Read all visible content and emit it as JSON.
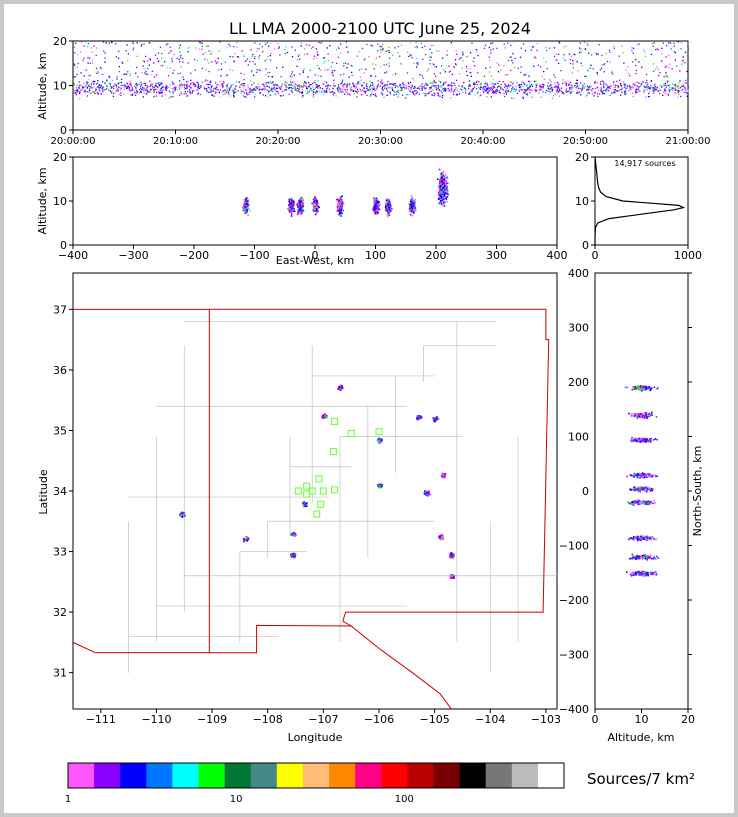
{
  "title": "LL LMA 2000-2100 UTC June 25, 2024",
  "colors": {
    "background": "#c8c8c8",
    "panel": "#ffffff",
    "state_border": "#cc0000",
    "county_border": "#c0c0c0",
    "histogram_line": "#000000",
    "network_station": "#66ff33"
  },
  "chart_data": [
    {
      "type": "scatter",
      "panel": "altitude-vs-time",
      "ylabel": "Altitude, km",
      "xlabel": "",
      "ylim": [
        0,
        20
      ],
      "yticks": [
        0,
        10,
        20
      ],
      "xlim_minutes": [
        0,
        60
      ],
      "xticks": [
        "20:00:00",
        "20:10:00",
        "20:20:00",
        "20:30:00",
        "20:40:00",
        "20:50:00",
        "21:00:00"
      ],
      "description_series": [
        {
          "name": "",
          "altitude_km_core": [
            7,
            12
          ],
          "altitude_km_sparse": [
            12,
            20
          ]
        }
      ]
    },
    {
      "type": "scatter",
      "panel": "altitude-vs-east-west",
      "xlabel": "East-West, km",
      "ylabel": "Altitude, km",
      "xlim": [
        -400,
        400
      ],
      "xticks": [
        -400,
        -300,
        -200,
        -100,
        0,
        100,
        200,
        300,
        400
      ],
      "ylim": [
        0,
        20
      ],
      "yticks": [
        0,
        10,
        20
      ],
      "clusters_x_km": [
        -115,
        -40,
        -25,
        0,
        40,
        100,
        120,
        160,
        210
      ]
    },
    {
      "type": "line",
      "panel": "altitude-histogram",
      "annotation": "14,917 sources",
      "xlim": [
        0,
        1000
      ],
      "xticks": [
        0,
        1000
      ],
      "ylim": [
        0,
        20
      ],
      "yticks": [
        0,
        10,
        20
      ],
      "altitude_km": [
        0,
        2,
        4,
        5,
        6,
        7,
        8,
        8.5,
        9,
        9.5,
        10,
        11,
        12,
        13,
        14,
        15,
        16,
        17,
        18,
        19,
        20
      ],
      "sources": [
        0,
        0,
        5,
        30,
        150,
        500,
        850,
        950,
        900,
        600,
        300,
        120,
        60,
        40,
        30,
        25,
        20,
        15,
        10,
        5,
        0
      ]
    },
    {
      "type": "scatter",
      "panel": "plan-view",
      "xlabel": "Longitude",
      "ylabel": "Latitude",
      "xlim": [
        -111.5,
        -102.8
      ],
      "ylim": [
        30.4,
        37.6
      ],
      "xticks": [
        -111,
        -110,
        -109,
        -108,
        -107,
        -106,
        -105,
        -104,
        -103
      ],
      "yticks": [
        31,
        32,
        33,
        34,
        35,
        36,
        37
      ],
      "stations": [
        {
          "lon": -106.8,
          "lat": 35.15
        },
        {
          "lon": -106.5,
          "lat": 34.95
        },
        {
          "lon": -106.0,
          "lat": 34.98
        },
        {
          "lon": -106.82,
          "lat": 34.65
        },
        {
          "lon": -107.08,
          "lat": 34.2
        },
        {
          "lon": -107.3,
          "lat": 34.08
        },
        {
          "lon": -107.45,
          "lat": 34.0
        },
        {
          "lon": -107.2,
          "lat": 34.0
        },
        {
          "lon": -107.0,
          "lat": 34.0
        },
        {
          "lon": -106.8,
          "lat": 34.02
        },
        {
          "lon": -107.3,
          "lat": 33.95
        },
        {
          "lon": -107.05,
          "lat": 33.78
        },
        {
          "lon": -107.12,
          "lat": 33.62
        }
      ],
      "clusters": [
        {
          "lon": -106.7,
          "lat": 35.72
        },
        {
          "lon": -107.0,
          "lat": 35.25
        },
        {
          "lon": -105.3,
          "lat": 35.23
        },
        {
          "lon": -105.0,
          "lat": 35.2
        },
        {
          "lon": -106.0,
          "lat": 34.85
        },
        {
          "lon": -104.85,
          "lat": 34.27
        },
        {
          "lon": -106.0,
          "lat": 34.1
        },
        {
          "lon": -105.15,
          "lat": 33.98
        },
        {
          "lon": -107.35,
          "lat": 33.8
        },
        {
          "lon": -109.55,
          "lat": 33.63
        },
        {
          "lon": -107.55,
          "lat": 33.3
        },
        {
          "lon": -108.4,
          "lat": 33.22
        },
        {
          "lon": -104.9,
          "lat": 33.25
        },
        {
          "lon": -107.55,
          "lat": 32.95
        },
        {
          "lon": -104.7,
          "lat": 32.95
        },
        {
          "lon": -104.7,
          "lat": 32.6
        }
      ]
    },
    {
      "type": "scatter",
      "panel": "north-south-vs-altitude",
      "xlabel": "Altitude, km",
      "ylabel": "North-South, km",
      "xlim": [
        0,
        20
      ],
      "xticks": [
        0,
        10,
        20
      ],
      "ylim": [
        -400,
        400
      ],
      "yticks": [
        -400,
        -300,
        -200,
        -100,
        0,
        100,
        200,
        300,
        400
      ],
      "clusters_ns_km": [
        190,
        140,
        95,
        30,
        5,
        -20,
        -85,
        -120,
        -150
      ]
    }
  ],
  "colorbar": {
    "label": "Sources/7 km²",
    "ticks": [
      "1",
      "10",
      "100"
    ],
    "colors": [
      "#ff55ff",
      "#8800ff",
      "#0000ff",
      "#0077ff",
      "#00ffff",
      "#00ff00",
      "#007733",
      "#448888",
      "#ffff00",
      "#ffbb77",
      "#ff8800",
      "#ff0088",
      "#ff0000",
      "#bb0000",
      "#770000",
      "#000000",
      "#777777",
      "#bbbbbb",
      "#ffffff"
    ]
  }
}
